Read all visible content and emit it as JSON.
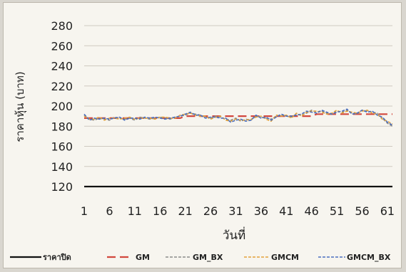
{
  "chart_data": {
    "type": "line",
    "title": "",
    "xlabel": "วันที่",
    "ylabel": "ราคาหุ้น (บาท)",
    "ylim": [
      120,
      280
    ],
    "yticks": [
      120,
      140,
      160,
      180,
      200,
      220,
      240,
      260,
      280
    ],
    "xtick_labels": [
      "1",
      "6",
      "11",
      "16",
      "21",
      "26",
      "31",
      "36",
      "41",
      "46",
      "51",
      "56",
      "61"
    ],
    "grid": "horizontal",
    "legend_position": "bottom",
    "x": [
      1,
      2,
      3,
      4,
      5,
      6,
      7,
      8,
      9,
      10,
      11,
      12,
      13,
      14,
      15,
      16,
      17,
      18,
      19,
      20,
      21,
      22,
      23,
      24,
      25,
      26,
      27,
      28,
      29,
      30,
      31,
      32,
      33,
      34,
      35,
      36,
      37,
      38,
      39,
      40,
      41,
      42,
      43,
      44,
      45,
      46,
      47,
      48,
      49,
      50,
      51,
      52,
      53,
      54,
      55,
      56,
      57,
      58,
      59,
      60,
      61,
      62
    ],
    "series": [
      {
        "name": "ราคาปิด",
        "color": "#111111",
        "dash": "solid",
        "values": [
          120,
          120,
          120,
          120,
          120,
          120,
          120,
          120,
          120,
          120,
          120,
          120,
          120,
          120,
          120,
          120,
          120,
          120,
          120,
          120,
          120,
          120,
          120,
          120,
          120,
          120,
          120,
          120,
          120,
          120,
          120,
          120,
          120,
          120,
          120,
          120,
          120,
          120,
          120,
          120,
          120,
          120,
          120,
          120,
          120,
          120,
          120,
          120,
          120,
          120,
          120,
          120,
          120,
          120,
          120,
          120,
          120,
          120,
          120,
          120,
          120,
          120
        ]
      },
      {
        "name": "GM",
        "color": "#d2473d",
        "dash": "long",
        "values": [
          188,
          188,
          188,
          188,
          188,
          188,
          188,
          188,
          188,
          188,
          188,
          188,
          188,
          188,
          188,
          188,
          188,
          188,
          188,
          188,
          190,
          190,
          190,
          190,
          190,
          190,
          190,
          190,
          190,
          190,
          190,
          190,
          190,
          190,
          190,
          190,
          190,
          190,
          190,
          190,
          190,
          190,
          190,
          190,
          190,
          190,
          192,
          192,
          192,
          192,
          192,
          192,
          192,
          192,
          192,
          192,
          192,
          192,
          192,
          192,
          192,
          192
        ]
      },
      {
        "name": "GM_BX",
        "color": "#8c8c8c",
        "dash": "dash",
        "values": [
          191,
          187,
          186,
          188,
          187,
          186,
          189,
          188,
          187,
          188,
          186,
          189,
          188,
          187,
          188,
          189,
          188,
          187,
          189,
          190,
          191,
          193,
          192,
          191,
          189,
          188,
          190,
          189,
          187,
          186,
          188,
          185,
          187,
          186,
          190,
          189,
          188,
          187,
          190,
          191,
          190,
          189,
          192,
          191,
          193,
          196,
          194,
          195,
          193,
          192,
          195,
          194,
          196,
          193,
          192,
          196,
          195,
          194,
          193,
          188,
          183,
          180
        ]
      },
      {
        "name": "GMCM",
        "color": "#e3a23a",
        "dash": "dash",
        "values": [
          190,
          187,
          187,
          189,
          186,
          188,
          188,
          187,
          188,
          189,
          187,
          188,
          188,
          188,
          187,
          189,
          189,
          188,
          188,
          191,
          192,
          193,
          191,
          190,
          190,
          187,
          189,
          190,
          186,
          185,
          187,
          186,
          186,
          187,
          189,
          190,
          187,
          185,
          191,
          190,
          191,
          188,
          193,
          190,
          194,
          195,
          195,
          194,
          192,
          193,
          196,
          193,
          195,
          194,
          193,
          195,
          196,
          193,
          192,
          187,
          185,
          182
        ]
      },
      {
        "name": "GMCM_BX",
        "color": "#4a6fbf",
        "dash": "dash",
        "values": [
          192,
          186,
          188,
          187,
          188,
          187,
          188,
          189,
          186,
          188,
          188,
          187,
          189,
          188,
          189,
          188,
          187,
          188,
          189,
          190,
          192,
          194,
          191,
          191,
          188,
          189,
          189,
          188,
          188,
          184,
          186,
          187,
          185,
          186,
          191,
          188,
          189,
          186,
          189,
          192,
          190,
          190,
          191,
          192,
          195,
          194,
          193,
          196,
          194,
          192,
          194,
          195,
          197,
          192,
          193,
          196,
          194,
          195,
          191,
          189,
          184,
          181
        ]
      }
    ]
  }
}
